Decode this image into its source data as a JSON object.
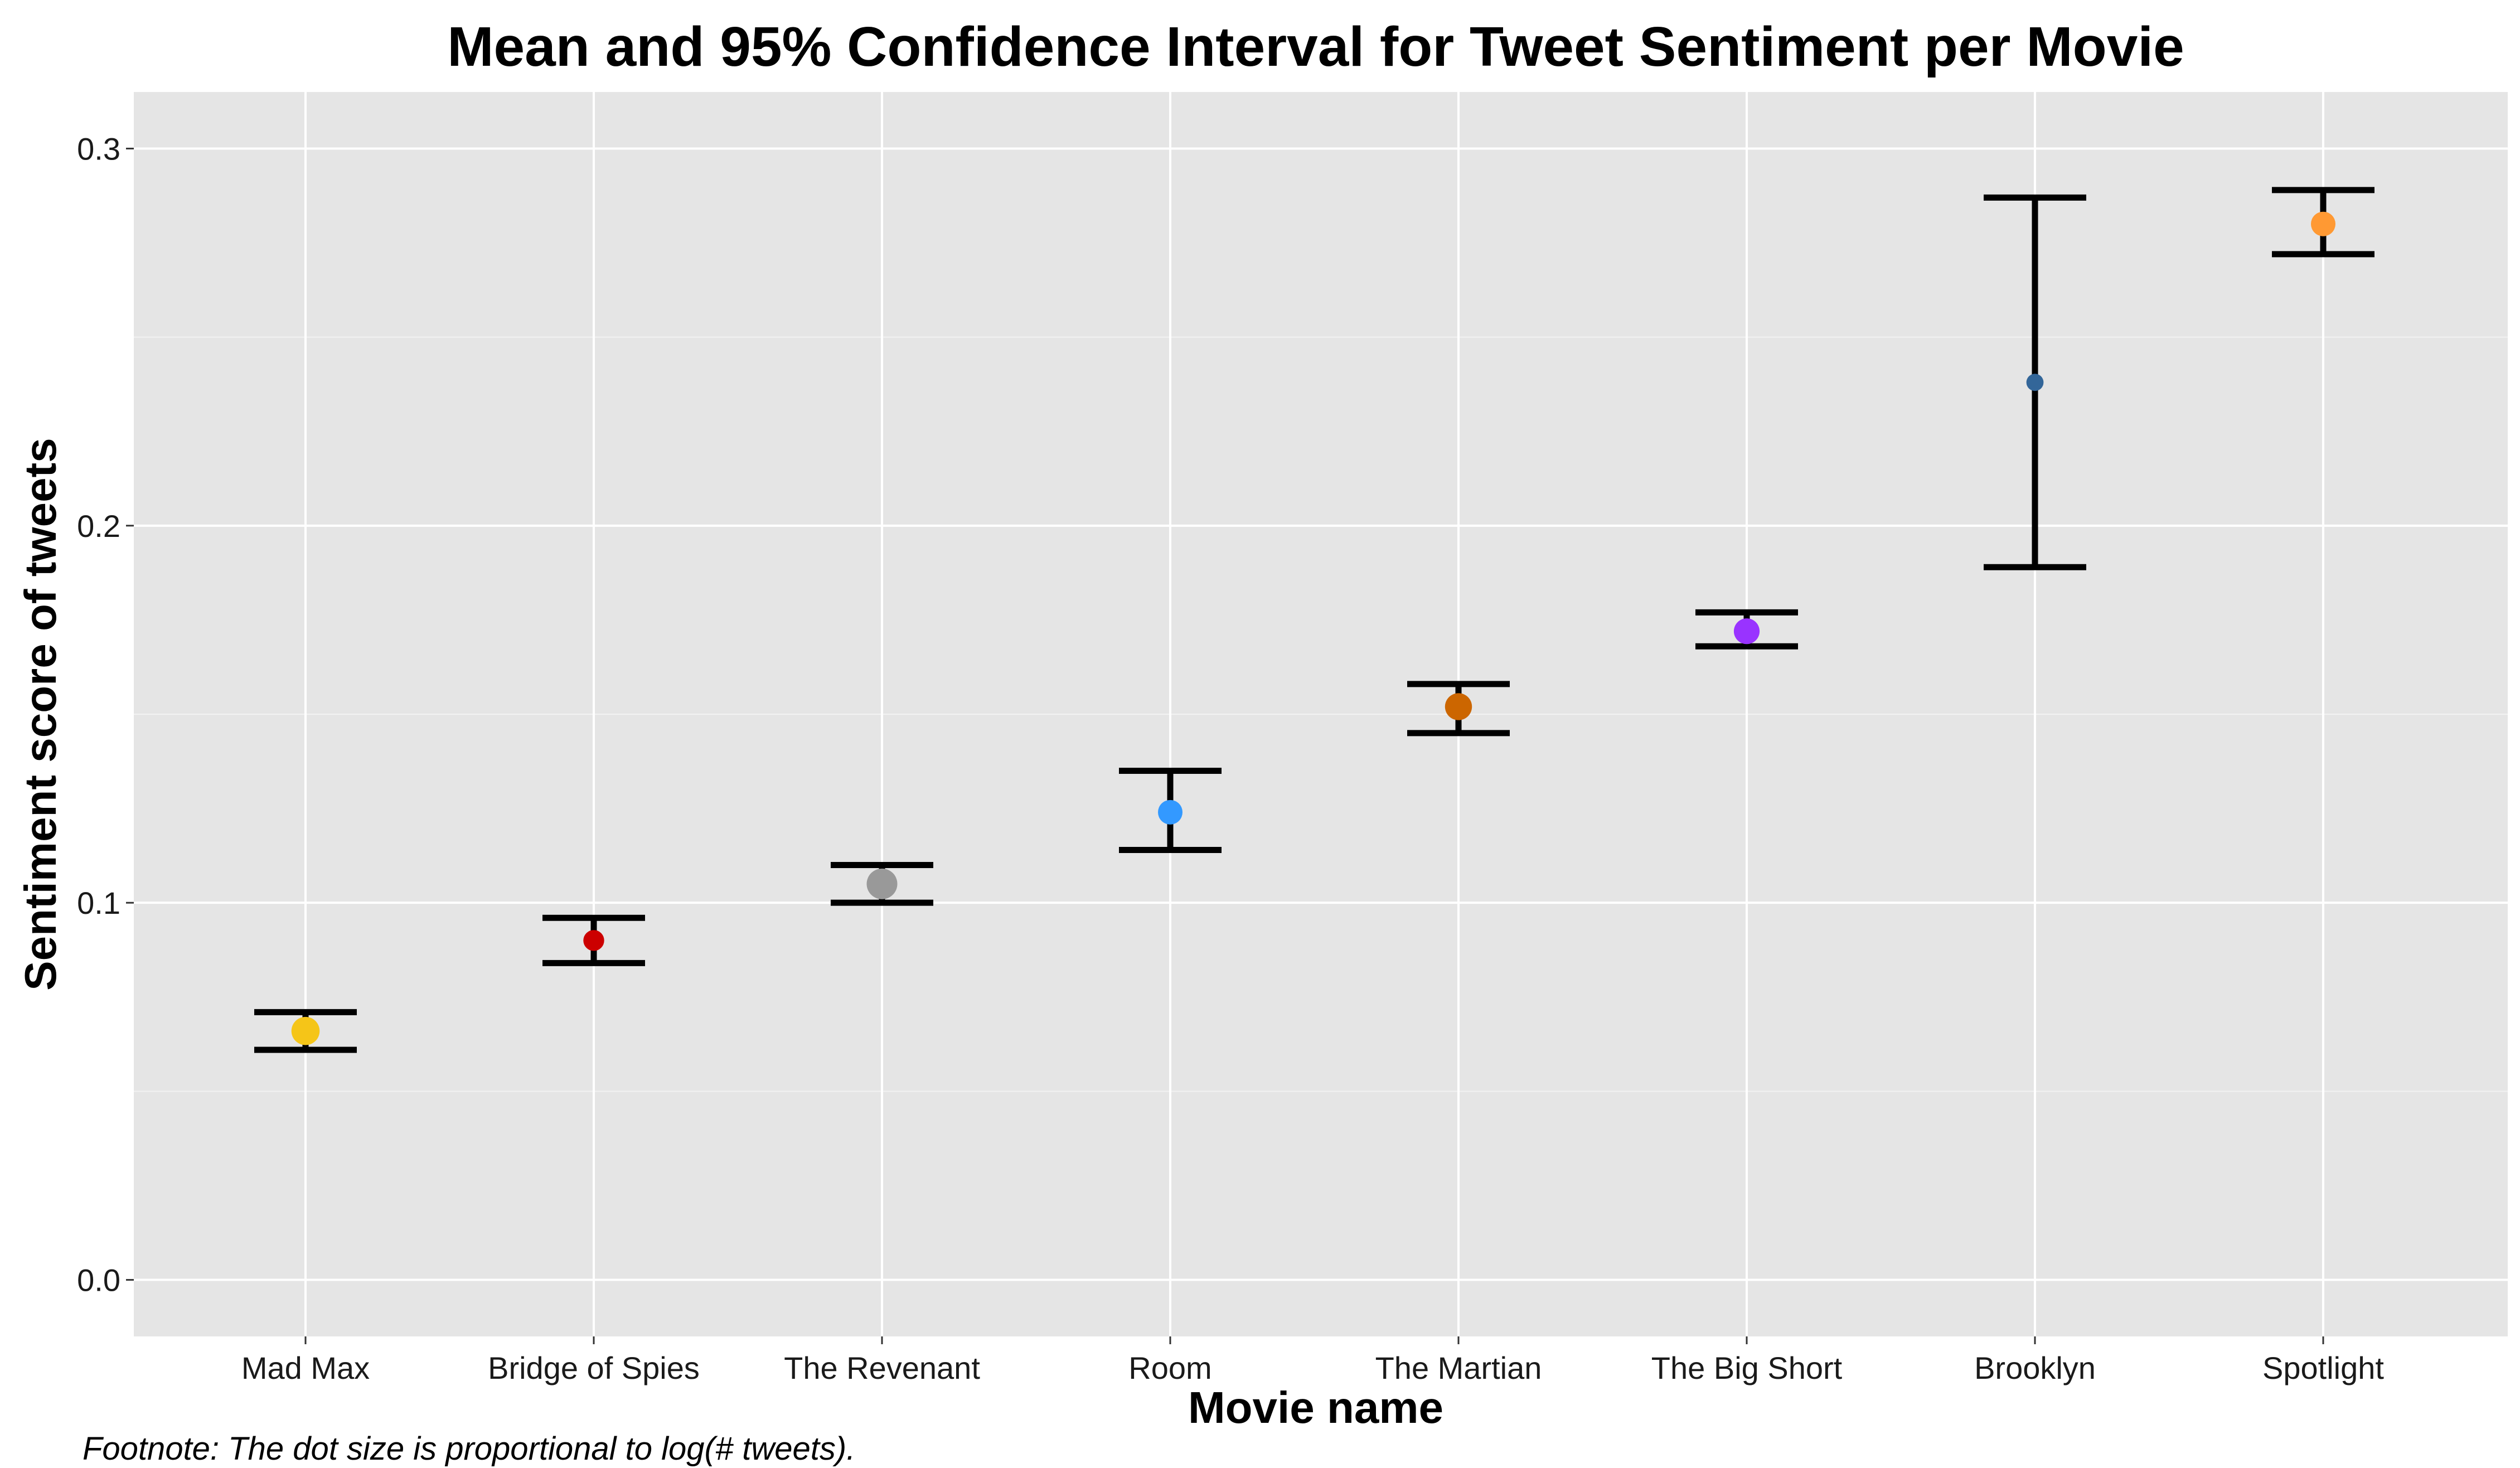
{
  "chart_data": {
    "type": "scatter",
    "title": "Mean and 95% Confidence Interval for Tweet Sentiment per Movie",
    "xlabel": "Movie name",
    "ylabel": "Sentiment score of tweets",
    "footnote": "Footnote: The dot size is proportional to log(# tweets).",
    "ylim": [
      -0.015,
      0.315
    ],
    "yticks": [
      0.0,
      0.1,
      0.2,
      0.3
    ],
    "ytick_labels": [
      "0.0",
      "0.1",
      "0.2",
      "0.3"
    ],
    "grid": true,
    "background": "#e5e5e5",
    "categories": [
      "Mad Max",
      "Bridge of Spies",
      "The Revenant",
      "Room",
      "The Martian",
      "The Big Short",
      "Brooklyn",
      "Spotlight"
    ],
    "points": [
      {
        "movie": "Mad Max",
        "mean": 0.066,
        "ci_low": 0.061,
        "ci_high": 0.071,
        "color": "#f5c518",
        "relative_size": 1.15
      },
      {
        "movie": "Bridge of Spies",
        "mean": 0.09,
        "ci_low": 0.084,
        "ci_high": 0.096,
        "color": "#cc0000",
        "relative_size": 0.85
      },
      {
        "movie": "The Revenant",
        "mean": 0.105,
        "ci_low": 0.1,
        "ci_high": 0.11,
        "color": "#999999",
        "relative_size": 1.25
      },
      {
        "movie": "Room",
        "mean": 0.124,
        "ci_low": 0.114,
        "ci_high": 0.135,
        "color": "#3399ff",
        "relative_size": 1.0
      },
      {
        "movie": "The Martian",
        "mean": 0.152,
        "ci_low": 0.145,
        "ci_high": 0.158,
        "color": "#cc6600",
        "relative_size": 1.1
      },
      {
        "movie": "The Big Short",
        "mean": 0.172,
        "ci_low": 0.168,
        "ci_high": 0.177,
        "color": "#9933ff",
        "relative_size": 1.05
      },
      {
        "movie": "Brooklyn",
        "mean": 0.238,
        "ci_low": 0.189,
        "ci_high": 0.287,
        "color": "#336699",
        "relative_size": 0.7
      },
      {
        "movie": "Spotlight",
        "mean": 0.28,
        "ci_low": 0.272,
        "ci_high": 0.289,
        "color": "#ff9933",
        "relative_size": 1.0
      }
    ]
  }
}
